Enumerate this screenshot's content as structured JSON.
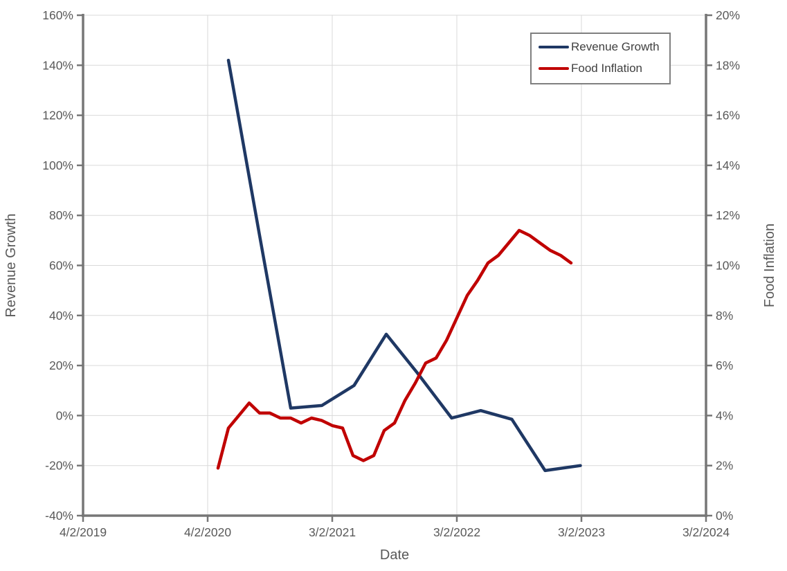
{
  "chart_data": {
    "type": "line",
    "title": "",
    "xlabel": "Date",
    "ylabel_left": "Revenue Growth",
    "ylabel_right": "Food Inflation",
    "grid": true,
    "legend_position": "top-right",
    "x_axis": {
      "unit": "months since first tick",
      "range_months": [
        0,
        60
      ],
      "tick_month_positions": [
        0,
        12,
        24,
        36,
        48,
        60
      ],
      "tick_labels": [
        "4/2/2019",
        "4/2/2020",
        "3/2/2021",
        "3/2/2022",
        "3/2/2023",
        "3/2/2024"
      ]
    },
    "left_axis": {
      "min": -40,
      "max": 160,
      "step": 20,
      "tick_values": [
        -40,
        -20,
        0,
        20,
        40,
        60,
        80,
        100,
        120,
        140,
        160
      ],
      "tick_labels": [
        "-40%",
        "-20%",
        "0%",
        "20%",
        "40%",
        "60%",
        "80%",
        "100%",
        "120%",
        "140%",
        "160%"
      ]
    },
    "right_axis": {
      "min": 0,
      "max": 20,
      "step": 2,
      "tick_values": [
        0,
        2,
        4,
        6,
        8,
        10,
        12,
        14,
        16,
        18,
        20
      ],
      "tick_labels": [
        "0%",
        "2%",
        "4%",
        "6%",
        "8%",
        "10%",
        "12%",
        "14%",
        "16%",
        "18%",
        "20%"
      ]
    },
    "series": [
      {
        "name": "Revenue Growth",
        "axis": "left",
        "color": "#1f3864",
        "x_months": [
          14,
          17,
          20,
          23,
          26.1,
          29.2,
          32.2,
          35.5,
          38.3,
          41.3,
          44.5,
          47.9
        ],
        "values": [
          142,
          72,
          3,
          4,
          12,
          32.5,
          17,
          -1,
          2,
          -1.5,
          -22,
          -20
        ]
      },
      {
        "name": "Food Inflation",
        "axis": "right",
        "color": "#c00000",
        "x_start_month": 13,
        "x_month_step": 1,
        "values": [
          1.9,
          3.5,
          4.0,
          4.5,
          4.1,
          4.1,
          3.9,
          3.9,
          3.7,
          3.9,
          3.8,
          3.6,
          3.5,
          2.4,
          2.2,
          2.4,
          3.4,
          3.7,
          4.6,
          5.3,
          6.1,
          6.3,
          7.0,
          7.9,
          8.8,
          9.4,
          10.1,
          10.4,
          10.9,
          11.4,
          11.2,
          10.9,
          10.6,
          10.4,
          10.1
        ]
      }
    ]
  },
  "legend": {
    "items": [
      {
        "label": "Revenue Growth"
      },
      {
        "label": "Food Inflation"
      }
    ]
  },
  "colors": {
    "background": "#ffffff",
    "gridline": "#d9d9d9",
    "axis_line": "#767676",
    "tick_text": "#595959",
    "axis_title_text": "#595959",
    "legend_border": "#7f7f7f",
    "legend_text": "#404040",
    "series_revenue_growth": "#1f3864",
    "series_food_inflation": "#c00000"
  }
}
